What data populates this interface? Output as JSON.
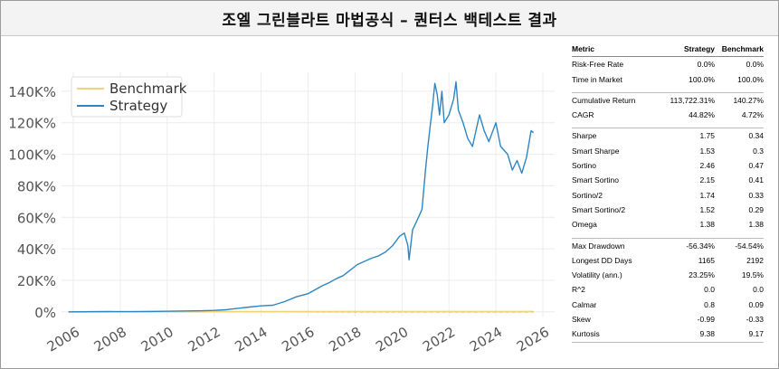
{
  "window": {
    "title": "조엘 그린블라트 마법공식 – 퀀터스 백테스트 결과"
  },
  "chart_data": {
    "type": "line",
    "x_ticks": [
      "2006",
      "2008",
      "2010",
      "2012",
      "2014",
      "2016",
      "2018",
      "2020",
      "2022",
      "2024",
      "2026"
    ],
    "y_ticks": [
      "0%",
      "20K%",
      "40K%",
      "60K%",
      "80K%",
      "100K%",
      "120K%",
      "140K%"
    ],
    "xlim": [
      2005.5,
      2026.5
    ],
    "ylim": [
      -3000,
      152000
    ],
    "grid": true,
    "legend_position": "upper-left",
    "series": [
      {
        "name": "Benchmark",
        "color": "#f2d27a",
        "points": [
          [
            2005.8,
            0
          ],
          [
            2010,
            60
          ],
          [
            2014,
            100
          ],
          [
            2018,
            140
          ],
          [
            2022,
            180
          ],
          [
            2025.6,
            140
          ]
        ]
      },
      {
        "name": "Strategy",
        "color": "#2e86c1",
        "points": [
          [
            2005.8,
            0
          ],
          [
            2006.5,
            50
          ],
          [
            2007.5,
            150
          ],
          [
            2008.5,
            100
          ],
          [
            2009.5,
            250
          ],
          [
            2010.5,
            500
          ],
          [
            2011.5,
            700
          ],
          [
            2012.0,
            900
          ],
          [
            2012.5,
            1300
          ],
          [
            2013.0,
            2200
          ],
          [
            2013.5,
            3000
          ],
          [
            2014.0,
            3800
          ],
          [
            2014.5,
            4200
          ],
          [
            2015.0,
            6500
          ],
          [
            2015.5,
            9500
          ],
          [
            2016.0,
            11500
          ],
          [
            2016.3,
            14000
          ],
          [
            2016.6,
            16500
          ],
          [
            2016.9,
            18500
          ],
          [
            2017.2,
            21000
          ],
          [
            2017.5,
            23000
          ],
          [
            2017.8,
            26500
          ],
          [
            2018.1,
            30000
          ],
          [
            2018.4,
            32000
          ],
          [
            2018.7,
            34000
          ],
          [
            2019.0,
            35500
          ],
          [
            2019.3,
            38000
          ],
          [
            2019.6,
            42000
          ],
          [
            2019.9,
            48000
          ],
          [
            2020.1,
            50000
          ],
          [
            2020.25,
            42000
          ],
          [
            2020.3,
            33000
          ],
          [
            2020.45,
            52000
          ],
          [
            2020.7,
            60000
          ],
          [
            2020.85,
            65000
          ],
          [
            2021.0,
            90000
          ],
          [
            2021.1,
            105000
          ],
          [
            2021.2,
            118000
          ],
          [
            2021.3,
            130000
          ],
          [
            2021.4,
            145000
          ],
          [
            2021.5,
            138000
          ],
          [
            2021.6,
            125000
          ],
          [
            2021.7,
            140000
          ],
          [
            2021.8,
            120000
          ],
          [
            2022.0,
            125000
          ],
          [
            2022.2,
            135000
          ],
          [
            2022.3,
            146000
          ],
          [
            2022.4,
            128000
          ],
          [
            2022.6,
            120000
          ],
          [
            2022.8,
            110000
          ],
          [
            2023.0,
            105000
          ],
          [
            2023.3,
            125000
          ],
          [
            2023.5,
            115000
          ],
          [
            2023.7,
            108000
          ],
          [
            2024.0,
            120000
          ],
          [
            2024.2,
            105000
          ],
          [
            2024.5,
            100000
          ],
          [
            2024.7,
            90000
          ],
          [
            2024.9,
            96000
          ],
          [
            2025.1,
            88000
          ],
          [
            2025.3,
            98000
          ],
          [
            2025.5,
            115000
          ],
          [
            2025.6,
            113700
          ]
        ]
      }
    ]
  },
  "metrics": {
    "headers": [
      "Metric",
      "Strategy",
      "Benchmark"
    ],
    "groups": [
      [
        {
          "name": "Risk-Free Rate",
          "strategy": "0.0%",
          "benchmark": "0.0%"
        },
        {
          "name": "Time in Market",
          "strategy": "100.0%",
          "benchmark": "100.0%"
        }
      ],
      [
        {
          "name": "Cumulative Return",
          "strategy": "113,722.31%",
          "benchmark": "140.27%"
        },
        {
          "name": "CAGR",
          "strategy": "44.82%",
          "benchmark": "4.72%"
        }
      ],
      [
        {
          "name": "Sharpe",
          "strategy": "1.75",
          "benchmark": "0.34"
        },
        {
          "name": "Smart Sharpe",
          "strategy": "1.53",
          "benchmark": "0.3"
        },
        {
          "name": "Sortino",
          "strategy": "2.46",
          "benchmark": "0.47"
        },
        {
          "name": "Smart Sortino",
          "strategy": "2.15",
          "benchmark": "0.41"
        },
        {
          "name": "Sortino/2",
          "strategy": "1.74",
          "benchmark": "0.33"
        },
        {
          "name": "Smart Sortino/2",
          "strategy": "1.52",
          "benchmark": "0.29"
        },
        {
          "name": "Omega",
          "strategy": "1.38",
          "benchmark": "1.38"
        }
      ],
      [
        {
          "name": "Max Drawdown",
          "strategy": "-56.34%",
          "benchmark": "-54.54%"
        },
        {
          "name": "Longest DD Days",
          "strategy": "1165",
          "benchmark": "2192"
        },
        {
          "name": "Volatility (ann.)",
          "strategy": "23.25%",
          "benchmark": "19.5%"
        },
        {
          "name": "R^2",
          "strategy": "0.0",
          "benchmark": "0.0"
        },
        {
          "name": "Calmar",
          "strategy": "0.8",
          "benchmark": "0.09"
        },
        {
          "name": "Skew",
          "strategy": "-0.99",
          "benchmark": "-0.33"
        },
        {
          "name": "Kurtosis",
          "strategy": "9.38",
          "benchmark": "9.17"
        }
      ]
    ]
  }
}
